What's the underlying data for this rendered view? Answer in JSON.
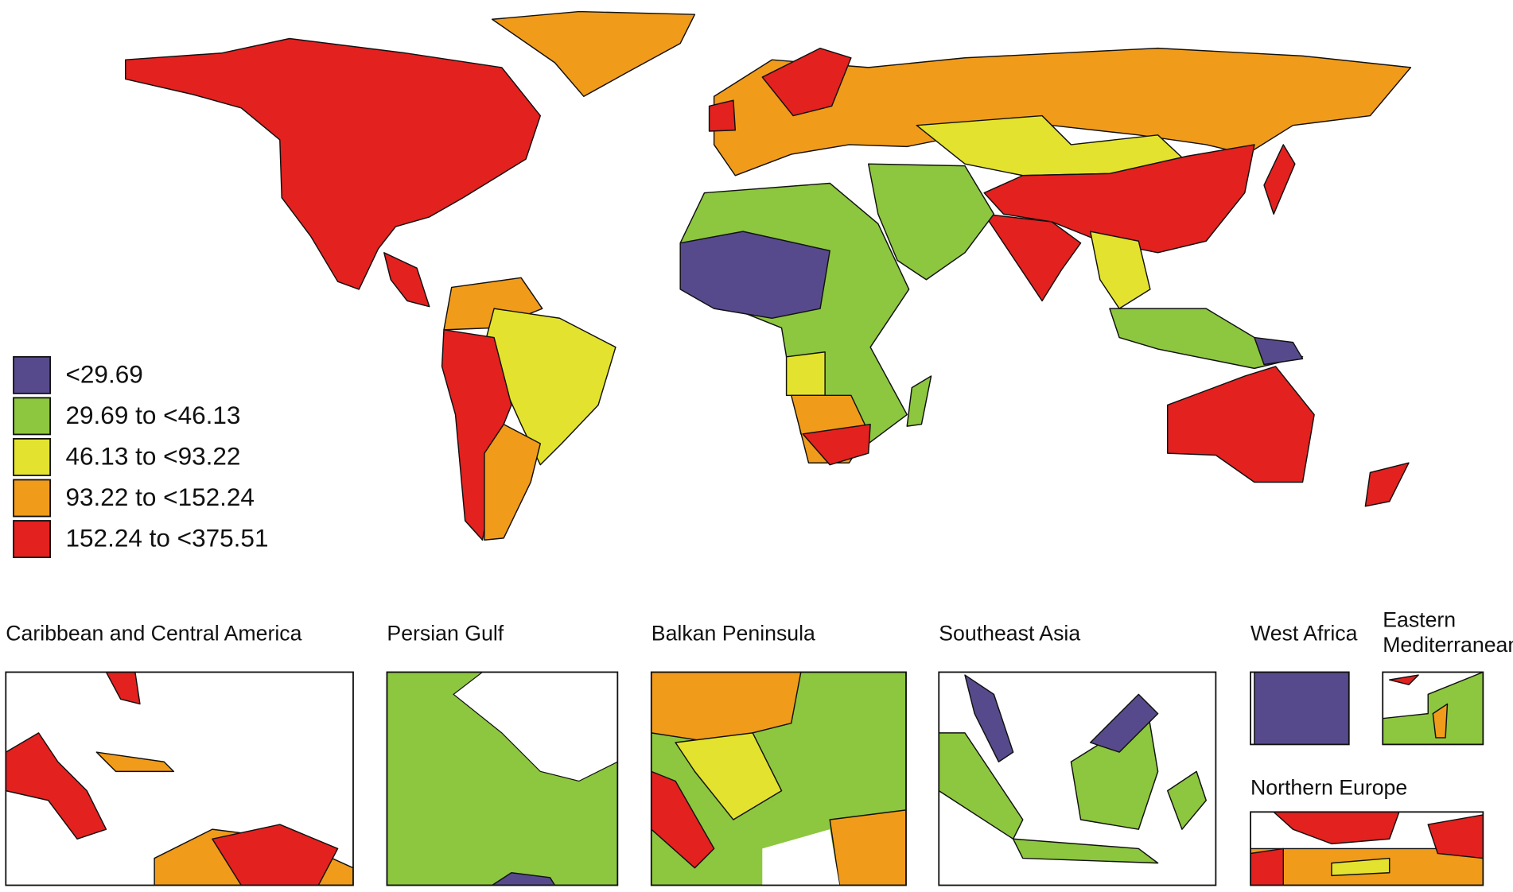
{
  "legend": {
    "items": [
      {
        "label": "<29.69",
        "color": "#574a8c"
      },
      {
        "label": "29.69 to <46.13",
        "color": "#8dc63f"
      },
      {
        "label": "46.13 to <93.22",
        "color": "#e3e32f"
      },
      {
        "label": "93.22 to <152.24",
        "color": "#f19b1b"
      },
      {
        "label": "152.24 to <375.51",
        "color": "#e3211f"
      }
    ]
  },
  "insets": [
    {
      "title": "Caribbean and Central America"
    },
    {
      "title": "Persian Gulf"
    },
    {
      "title": "Balkan Peninsula"
    },
    {
      "title": "Southeast Asia"
    },
    {
      "title": "West Africa"
    },
    {
      "title": [
        "Eastern",
        "Mediterranean"
      ]
    },
    {
      "title": "Northern Europe"
    }
  ]
}
